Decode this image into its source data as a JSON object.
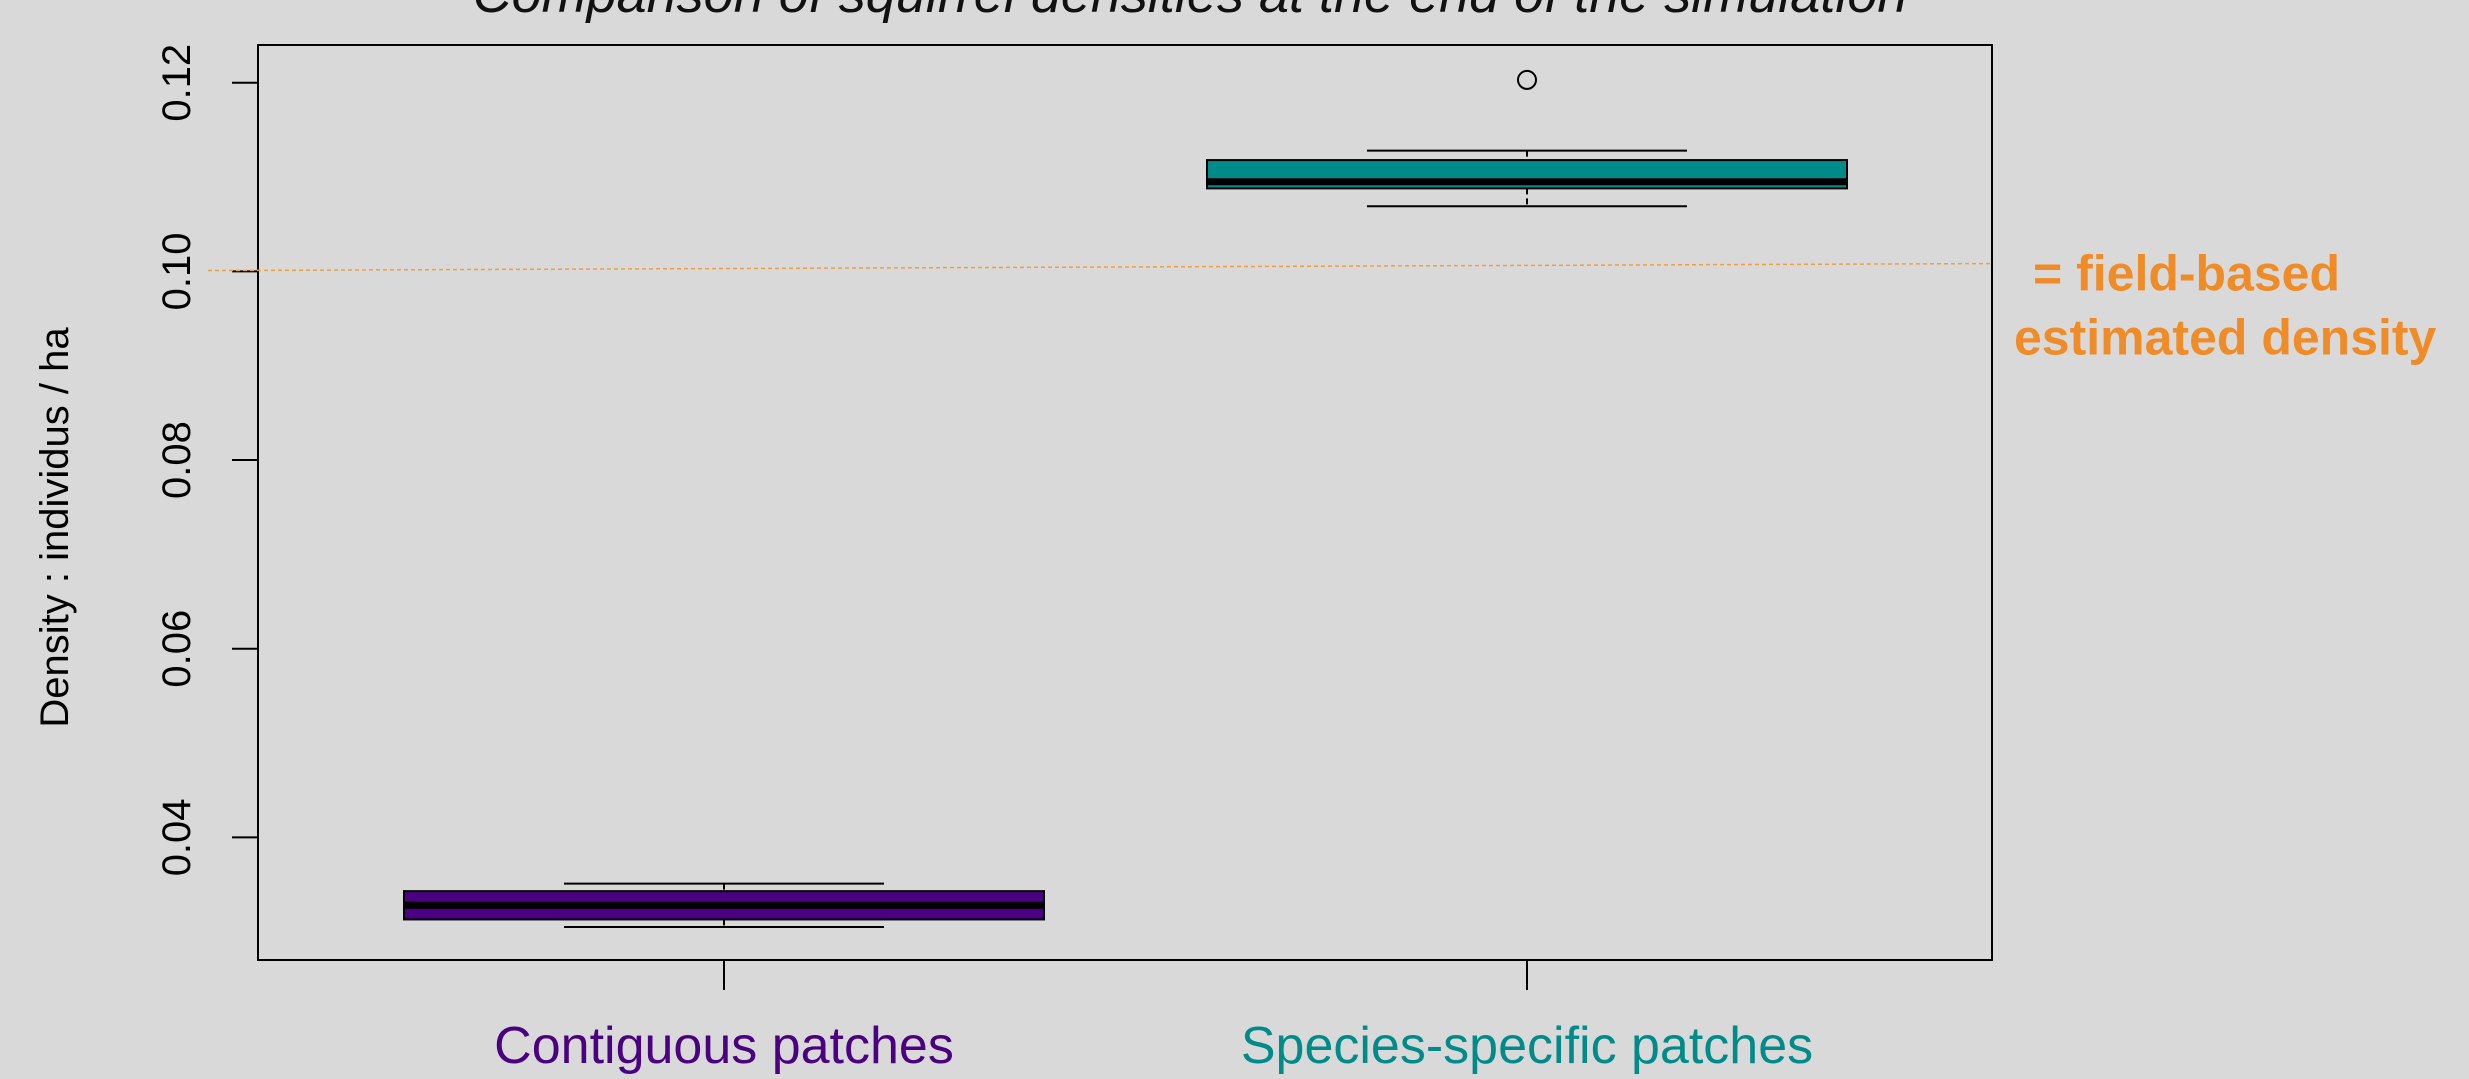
{
  "chart_data": {
    "type": "box",
    "title": "Comparison of squirrel densities at the end of the simulation",
    "ylabel": "Density : individus / ha",
    "xlabel": "",
    "ylim": [
      0.027,
      0.124
    ],
    "yticks": [
      0.04,
      0.06,
      0.08,
      0.1,
      0.12
    ],
    "ytick_labels": [
      "0.04",
      "0.06",
      "0.08",
      "0.10",
      "0.12"
    ],
    "grid": false,
    "categories": [
      "Contiguous patches",
      "Species-specific patches"
    ],
    "boxes": [
      {
        "category": "Contiguous patches",
        "min": 0.0305,
        "q1": 0.0313,
        "median": 0.0328,
        "q3": 0.0343,
        "max": 0.0351,
        "outliers": [],
        "fill": "#4b0082",
        "label_color": "#4b0082"
      },
      {
        "category": "Species-specific patches",
        "min": 0.1069,
        "q1": 0.1088,
        "median": 0.1095,
        "q3": 0.1118,
        "max": 0.1128,
        "outliers": [
          0.1203
        ],
        "fill": "#008b8b",
        "label_color": "#008b8b"
      }
    ],
    "reference_line": {
      "value": 0.1003,
      "color": "#f0a040",
      "label_lines": [
        "= field-based",
        "estimated density"
      ],
      "label_color": "#f08c28"
    }
  }
}
